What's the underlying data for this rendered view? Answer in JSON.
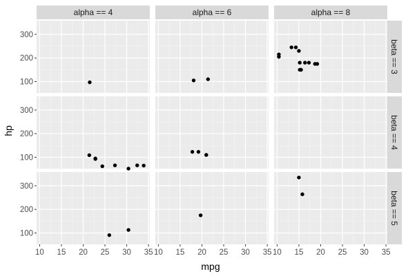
{
  "chart_data": {
    "type": "scatter",
    "facet_cols_title": [
      "alpha == 4",
      "alpha == 6",
      "alpha == 8"
    ],
    "facet_rows_title": [
      "beta == 3",
      "beta == 4",
      "beta == 5"
    ],
    "xlabel": "mpg",
    "ylabel": "hp",
    "xlim": [
      9.3,
      35.3
    ],
    "ylim": [
      52,
      358
    ],
    "xticks": [
      10,
      15,
      20,
      25,
      30,
      35
    ],
    "xtick_labels": [
      "10",
      "15",
      "20",
      "25",
      "30",
      "35"
    ],
    "yticks": [
      100,
      200,
      300
    ],
    "ytick_labels": [
      "100",
      "200",
      "300"
    ],
    "grid": true,
    "point_color": "#000000",
    "panel_bg": "#ebebeb",
    "strip_bg": "#d9d9d9",
    "panels": [
      {
        "row": 0,
        "col": 0,
        "x": [
          21.5
        ],
        "y": [
          97
        ]
      },
      {
        "row": 0,
        "col": 1,
        "x": [
          18.1,
          21.4
        ],
        "y": [
          105,
          110
        ]
      },
      {
        "row": 0,
        "col": 2,
        "x": [
          10.4,
          10.4,
          13.3,
          14.3,
          15.0,
          15.2,
          15.2,
          15.5,
          16.4,
          17.3,
          18.7,
          19.2
        ],
        "y": [
          205,
          215,
          245,
          245,
          230,
          150,
          180,
          150,
          180,
          180,
          175,
          175
        ]
      },
      {
        "row": 1,
        "col": 0,
        "x": [
          21.4,
          22.8,
          22.8,
          24.4,
          27.3,
          30.4,
          32.4,
          33.9
        ],
        "y": [
          109,
          95,
          93,
          62,
          66,
          52,
          66,
          65
        ]
      },
      {
        "row": 1,
        "col": 1,
        "x": [
          17.8,
          19.2,
          21.0,
          21.0
        ],
        "y": [
          123,
          123,
          110,
          110
        ]
      },
      {
        "row": 1,
        "col": 2,
        "x": [],
        "y": []
      },
      {
        "row": 2,
        "col": 0,
        "x": [
          26.0,
          30.4
        ],
        "y": [
          91,
          113
        ]
      },
      {
        "row": 2,
        "col": 1,
        "x": [
          19.7
        ],
        "y": [
          175
        ]
      },
      {
        "row": 2,
        "col": 2,
        "x": [
          15.0,
          15.8
        ],
        "y": [
          335,
          264
        ]
      }
    ]
  }
}
